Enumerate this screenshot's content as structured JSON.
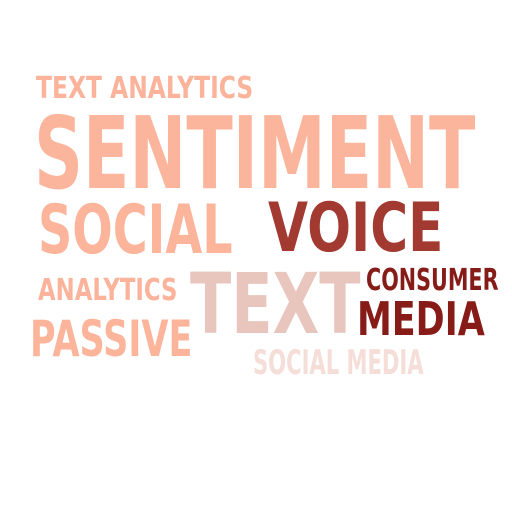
{
  "word_cloud": {
    "words": [
      {
        "id": "text-analytics",
        "text": "TEXT ANALYTICS",
        "color": "#fbb49b"
      },
      {
        "id": "sentiment",
        "text": "SENTIMENT",
        "color": "#fcb59d"
      },
      {
        "id": "social",
        "text": "SOCIAL",
        "color": "#fcb49b"
      },
      {
        "id": "voice",
        "text": "VOICE",
        "color": "#a23a31"
      },
      {
        "id": "analytics",
        "text": "ANALYTICS",
        "color": "#fbb49b"
      },
      {
        "id": "text",
        "text": "TEXT",
        "color": "#e9c6bd"
      },
      {
        "id": "consumer",
        "text": "CONSUMER",
        "color": "#861c17"
      },
      {
        "id": "media",
        "text": "MEDIA",
        "color": "#871b18"
      },
      {
        "id": "passive",
        "text": "PASSIVE",
        "color": "#fcb49b"
      },
      {
        "id": "social-media",
        "text": "SOCIAL MEDIA",
        "color": "#f5ddd8"
      }
    ]
  }
}
